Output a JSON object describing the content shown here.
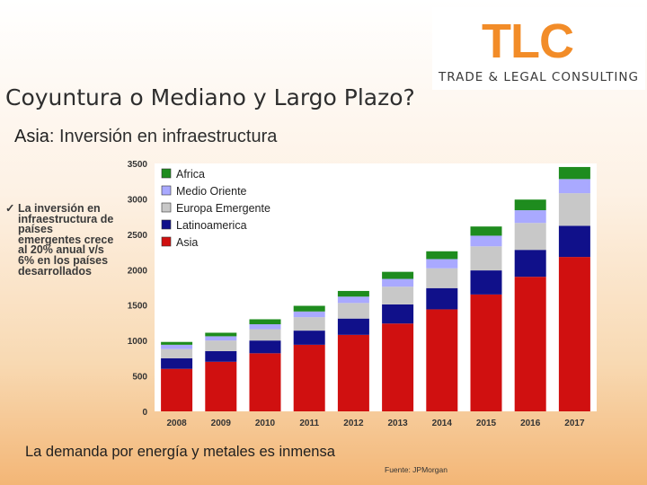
{
  "header": {
    "logo_text": "TLC",
    "logo_subtitle": "TRADE & LEGAL CONSULTING",
    "title": "Coyuntura o Mediano y Largo Plazo?",
    "subtitle_strong": "Asia",
    "subtitle_rest": ": Inversión en infraestructura"
  },
  "bullet": {
    "check": "✓",
    "text": "La inversión en infraestructura de países emergentes crece al 20% anual v/s 6% en los países desarrollados"
  },
  "footer": {
    "statement": "La demanda por energía y metales es inmensa",
    "source": "Fuente: JPMorgan"
  },
  "colors": {
    "logo_orange": "#f28c28",
    "Africa": "#1e8c1e",
    "Medio Oriente": "#a9a9ff",
    "Europa Emergente": "#c8c8c8",
    "Latinoamerica": "#10108a",
    "Asia": "#d01010"
  },
  "chart_data": {
    "type": "bar",
    "stacked": true,
    "categories": [
      "2008",
      "2009",
      "2010",
      "2011",
      "2012",
      "2013",
      "2014",
      "2015",
      "2016",
      "2017"
    ],
    "ylim": [
      0,
      3500
    ],
    "yticks": [
      "0",
      "500",
      "1000",
      "1500",
      "2000",
      "2500",
      "3000",
      "3500"
    ],
    "legend_position": "top-left",
    "grid": false,
    "series": [
      {
        "name": "Asia",
        "values": [
          600,
          700,
          820,
          940,
          1080,
          1240,
          1440,
          1650,
          1900,
          2180
        ]
      },
      {
        "name": "Latinoamerica",
        "values": [
          150,
          150,
          180,
          200,
          230,
          270,
          300,
          340,
          380,
          440
        ]
      },
      {
        "name": "Europa Emergente",
        "values": [
          130,
          150,
          160,
          190,
          220,
          250,
          280,
          340,
          380,
          460
        ]
      },
      {
        "name": "Medio Oriente",
        "values": [
          60,
          60,
          70,
          80,
          90,
          110,
          130,
          150,
          180,
          200
        ]
      },
      {
        "name": "Africa",
        "values": [
          40,
          50,
          70,
          80,
          80,
          100,
          110,
          130,
          150,
          170
        ]
      }
    ]
  }
}
